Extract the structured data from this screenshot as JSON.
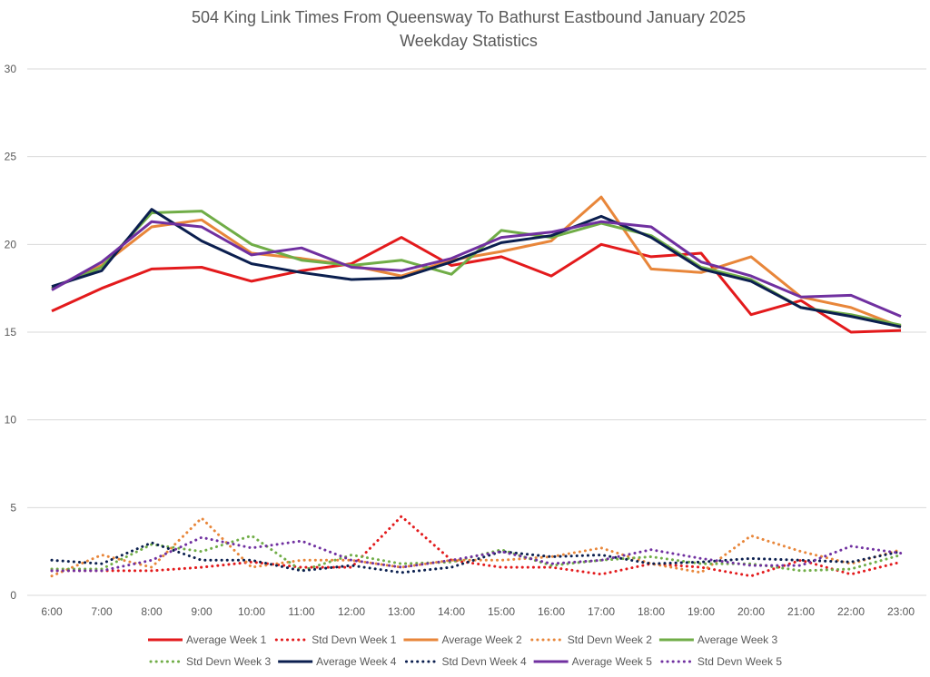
{
  "chart_data": {
    "type": "line",
    "title": "504 King Link Times From Queensway To Bathurst Eastbound January 2025",
    "subtitle": "Weekday Statistics",
    "xlabel": "",
    "ylabel": "",
    "ylim": [
      0,
      30
    ],
    "yticks": [
      "0",
      "5",
      "10",
      "15",
      "20",
      "25",
      "30"
    ],
    "grid": true,
    "legend_position": "bottom",
    "categories": [
      "6:00",
      "7:00",
      "8:00",
      "9:00",
      "10:00",
      "11:00",
      "12:00",
      "13:00",
      "14:00",
      "15:00",
      "16:00",
      "17:00",
      "18:00",
      "19:00",
      "20:00",
      "21:00",
      "22:00",
      "23:00"
    ],
    "series": [
      {
        "name": "Average Week 1",
        "style": "solid",
        "color": "#e31a1c",
        "values": [
          16.2,
          17.5,
          18.6,
          18.7,
          17.9,
          18.5,
          18.9,
          20.4,
          18.8,
          19.3,
          18.2,
          20.0,
          19.3,
          19.5,
          16.0,
          16.8,
          15.0,
          15.1
        ]
      },
      {
        "name": "Std Devn Week 1",
        "style": "dotted",
        "color": "#e31a1c",
        "values": [
          1.4,
          1.4,
          1.4,
          1.6,
          1.9,
          1.6,
          1.6,
          4.5,
          2.0,
          1.6,
          1.6,
          1.2,
          1.8,
          1.6,
          1.1,
          2.0,
          1.2,
          1.9
        ]
      },
      {
        "name": "Average Week 2",
        "style": "solid",
        "color": "#e8863a",
        "values": [
          17.5,
          18.8,
          21.0,
          21.4,
          19.5,
          19.2,
          18.8,
          18.2,
          19.1,
          19.6,
          20.2,
          22.7,
          18.6,
          18.4,
          19.3,
          17.0,
          16.4,
          15.3
        ]
      },
      {
        "name": "Std Devn Week 2",
        "style": "dotted",
        "color": "#e8863a",
        "values": [
          1.1,
          2.3,
          1.6,
          4.4,
          1.6,
          2.0,
          2.0,
          1.6,
          2.0,
          2.0,
          2.2,
          2.7,
          1.8,
          1.3,
          3.4,
          2.5,
          1.8,
          2.6
        ]
      },
      {
        "name": "Average Week 3",
        "style": "solid",
        "color": "#70ad47",
        "values": [
          17.5,
          18.7,
          21.8,
          21.9,
          20.0,
          19.1,
          18.8,
          19.1,
          18.3,
          20.8,
          20.4,
          21.2,
          20.5,
          18.7,
          18.0,
          16.4,
          16.0,
          15.4
        ]
      },
      {
        "name": "Std Devn Week 3",
        "style": "dotted",
        "color": "#70ad47",
        "values": [
          1.5,
          1.5,
          2.9,
          2.5,
          3.4,
          1.4,
          2.3,
          1.8,
          1.9,
          2.6,
          1.7,
          2.0,
          2.2,
          1.8,
          1.8,
          1.4,
          1.5,
          2.3
        ]
      },
      {
        "name": "Average Week 4",
        "style": "solid",
        "color": "#0b1f4f",
        "values": [
          17.6,
          18.5,
          22.0,
          20.2,
          18.9,
          18.4,
          18.0,
          18.1,
          19.0,
          20.1,
          20.5,
          21.6,
          20.4,
          18.6,
          17.9,
          16.4,
          15.9,
          15.3
        ]
      },
      {
        "name": "Std Devn Week 4",
        "style": "dotted",
        "color": "#0b1f4f",
        "values": [
          2.0,
          1.8,
          3.0,
          2.0,
          2.0,
          1.4,
          1.7,
          1.3,
          1.6,
          2.5,
          2.2,
          2.3,
          1.8,
          1.9,
          2.1,
          2.0,
          1.9,
          2.5
        ]
      },
      {
        "name": "Average Week 5",
        "style": "solid",
        "color": "#7030a0",
        "values": [
          17.4,
          19.0,
          21.3,
          21.0,
          19.4,
          19.8,
          18.7,
          18.5,
          19.2,
          20.4,
          20.7,
          21.3,
          21.0,
          19.0,
          18.2,
          17.0,
          17.1,
          15.9
        ]
      },
      {
        "name": "Std Devn Week 5",
        "style": "dotted",
        "color": "#7030a0",
        "values": [
          1.4,
          1.4,
          2.0,
          3.3,
          2.7,
          3.1,
          2.0,
          1.6,
          2.0,
          2.5,
          1.8,
          2.0,
          2.6,
          2.1,
          1.7,
          1.7,
          2.8,
          2.4
        ]
      }
    ]
  }
}
